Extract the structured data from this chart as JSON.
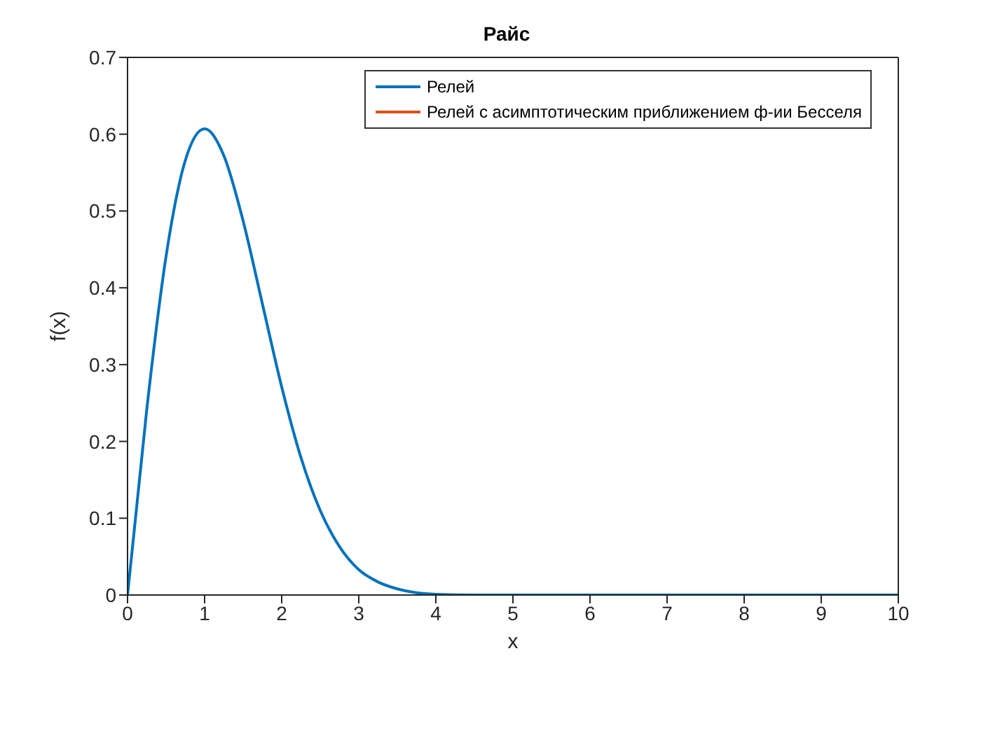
{
  "chart_data": {
    "type": "line",
    "title": "Райс",
    "xlabel": "x",
    "ylabel": "f(x)",
    "x": [
      0,
      0.25,
      0.5,
      0.75,
      1,
      1.25,
      1.5,
      1.75,
      2,
      2.25,
      2.5,
      2.75,
      3,
      3.25,
      3.5,
      3.75,
      4,
      4.5,
      5,
      6,
      7,
      8,
      9,
      10
    ],
    "series": [
      {
        "name": "Релей",
        "color": "#0072bd",
        "values": [
          0,
          0.242,
          0.441,
          0.566,
          0.607,
          0.572,
          0.487,
          0.379,
          0.271,
          0.179,
          0.11,
          0.063,
          0.033,
          0.017,
          0.008,
          0.003,
          0.001,
          0,
          0,
          0,
          0,
          0,
          0,
          0
        ]
      },
      {
        "name": "Релей с асимптотическим приближением ф-ии Бесселя",
        "color": "#d95319",
        "values": [
          null,
          null,
          null,
          null,
          null,
          null,
          null,
          null,
          null,
          null,
          null,
          null,
          null,
          null,
          null,
          null,
          null,
          null,
          null,
          null,
          null,
          null,
          null,
          null
        ]
      }
    ],
    "xlim": [
      0,
      10
    ],
    "xticks": [
      0,
      1,
      2,
      3,
      4,
      5,
      6,
      7,
      8,
      9,
      10
    ],
    "ylim": [
      0,
      0.7
    ],
    "yticks": [
      0,
      0.1,
      0.2,
      0.3,
      0.4,
      0.5,
      0.6,
      0.7
    ],
    "grid": false,
    "legend": "top right",
    "marker": "none",
    "line_style": "solid"
  }
}
